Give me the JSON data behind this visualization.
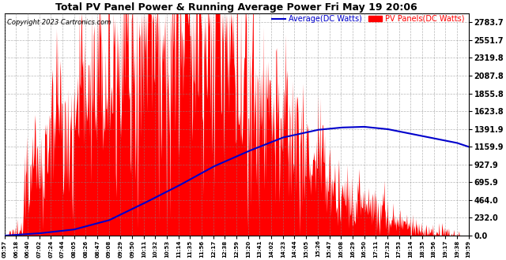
{
  "title": "Total PV Panel Power & Running Average Power Fri May 19 20:06",
  "copyright": "Copyright 2023 Cartronics.com",
  "legend_avg": "Average(DC Watts)",
  "legend_pv": "PV Panels(DC Watts)",
  "yticks": [
    0.0,
    232.0,
    464.0,
    695.9,
    927.9,
    1159.9,
    1391.9,
    1623.8,
    1855.8,
    2087.8,
    2319.8,
    2551.7,
    2783.7
  ],
  "ylim": [
    0,
    2900
  ],
  "bg_color": "#ffffff",
  "grid_color": "#888888",
  "fill_color": "#ff0000",
  "avg_color": "#0000cc",
  "title_color": "#000000",
  "copyright_color": "#000000",
  "legend_avg_color": "#0000cc",
  "legend_pv_color": "#ff0000",
  "xtick_labels": [
    "05:57",
    "06:18",
    "06:40",
    "07:02",
    "07:24",
    "07:44",
    "08:05",
    "08:26",
    "08:47",
    "09:08",
    "09:29",
    "09:50",
    "10:11",
    "10:32",
    "10:53",
    "11:14",
    "11:35",
    "11:56",
    "12:17",
    "12:38",
    "12:59",
    "13:20",
    "13:41",
    "14:02",
    "14:23",
    "14:44",
    "15:05",
    "15:26",
    "15:47",
    "16:08",
    "16:29",
    "16:50",
    "17:11",
    "17:32",
    "17:53",
    "18:14",
    "18:35",
    "18:56",
    "19:17",
    "19:38",
    "19:59"
  ],
  "avg_x": [
    0,
    3,
    6,
    9,
    12,
    15,
    18,
    21,
    24,
    27,
    29,
    31,
    33,
    35,
    37,
    39,
    40
  ],
  "avg_y": [
    0,
    30,
    80,
    200,
    420,
    650,
    900,
    1100,
    1280,
    1380,
    1410,
    1420,
    1390,
    1330,
    1270,
    1210,
    1160
  ]
}
